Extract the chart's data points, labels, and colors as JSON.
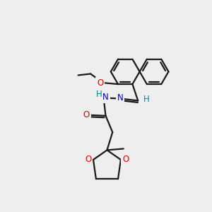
{
  "bg_color": "#eeeeee",
  "bond_color": "#1a1a1a",
  "ring_lw": 1.6,
  "atom_colors": {
    "O": "#dd0000",
    "N": "#0000cc",
    "H_teal": "#008888"
  },
  "figsize": [
    3.0,
    3.0
  ],
  "dpi": 100
}
